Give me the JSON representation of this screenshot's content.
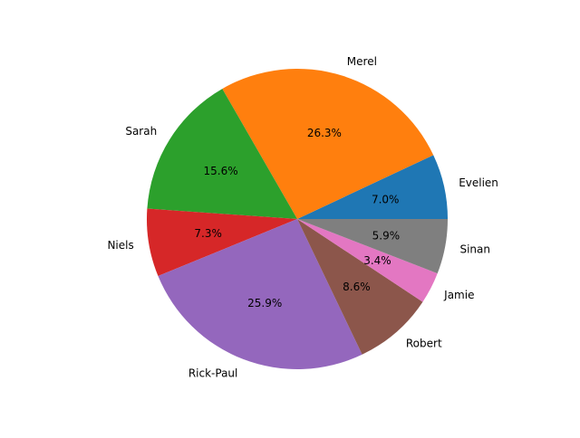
{
  "chart_data": {
    "type": "pie",
    "title": "",
    "categories": [
      "Evelien",
      "Merel",
      "Sarah",
      "Niels",
      "Rick-Paul",
      "Robert",
      "Jamie",
      "Sinan"
    ],
    "values": [
      7.0,
      26.3,
      15.6,
      7.3,
      25.9,
      8.6,
      3.4,
      5.9
    ],
    "value_labels": [
      "7.0%",
      "26.3%",
      "15.6%",
      "7.3%",
      "25.9%",
      "8.6%",
      "3.4%",
      "5.9%"
    ],
    "colors": [
      "#1f77b4",
      "#ff7f0e",
      "#2ca02c",
      "#d62728",
      "#9467bd",
      "#8c564b",
      "#e377c2",
      "#7f7f7f"
    ],
    "start_angle_deg": 0,
    "direction": "counterclockwise",
    "legend": "none"
  }
}
